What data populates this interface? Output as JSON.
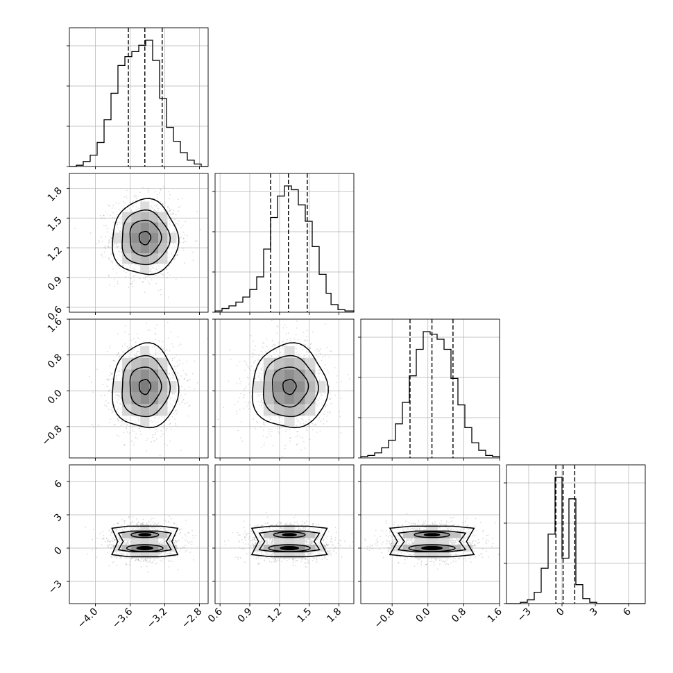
{
  "chart_data": {
    "type": "corner",
    "parameters": 4,
    "grid": true,
    "colors": {
      "line": "#000000",
      "grid": "#b0b0b0",
      "scatter": "#7f7f7f"
    },
    "axes": [
      {
        "lim": [
          -4.3,
          -2.7
        ],
        "ticks": [
          -4.0,
          -3.6,
          -3.2,
          -2.8
        ],
        "tick_labels": [
          "−4.0",
          "−3.6",
          "−3.2",
          "−2.8"
        ]
      },
      {
        "lim": [
          0.55,
          1.95
        ],
        "ticks": [
          0.6,
          0.9,
          1.2,
          1.5,
          1.8
        ],
        "tick_labels": [
          "0.6",
          "0.9",
          "1.2",
          "1.5",
          "1.8"
        ]
      },
      {
        "lim": [
          -1.5,
          1.6
        ],
        "ticks": [
          -0.8,
          0.0,
          0.8,
          1.6
        ],
        "tick_labels": [
          "−0.8",
          "0.0",
          "0.8",
          "1.6"
        ]
      },
      {
        "lim": [
          -5.0,
          7.5
        ],
        "ticks": [
          -3,
          0,
          3,
          6
        ],
        "tick_labels": [
          "−3",
          "0",
          "3",
          "6"
        ]
      }
    ],
    "marginals": [
      {
        "param": 0,
        "quantiles": [
          -3.62,
          -3.43,
          -3.23
        ],
        "bin_edges": [
          -4.3,
          -4.22,
          -4.14,
          -4.06,
          -3.98,
          -3.9,
          -3.82,
          -3.74,
          -3.66,
          -3.58,
          -3.5,
          -3.42,
          -3.34,
          -3.26,
          -3.18,
          -3.1,
          -3.02,
          -2.94,
          -2.86,
          -2.78,
          -2.7
        ],
        "counts": [
          0,
          1,
          4,
          9,
          19,
          37,
          58,
          80,
          87,
          91,
          96,
          100,
          84,
          54,
          31,
          20,
          11,
          5,
          2,
          0
        ]
      },
      {
        "param": 1,
        "quantiles": [
          1.11,
          1.29,
          1.48
        ],
        "bin_edges": [
          0.55,
          0.62,
          0.69,
          0.76,
          0.83,
          0.9,
          0.97,
          1.04,
          1.11,
          1.18,
          1.25,
          1.32,
          1.39,
          1.46,
          1.53,
          1.6,
          1.67,
          1.72,
          1.79,
          1.86,
          1.95
        ],
        "counts": [
          1,
          3,
          5,
          8,
          12,
          18,
          28,
          50,
          75,
          92,
          100,
          97,
          85,
          72,
          52,
          30,
          15,
          6,
          2,
          1
        ]
      },
      {
        "param": 2,
        "quantiles": [
          -0.4,
          0.09,
          0.56
        ],
        "bin_edges": [
          -1.5,
          -1.345,
          -1.19,
          -1.035,
          -0.88,
          -0.725,
          -0.57,
          -0.415,
          -0.26,
          -0.105,
          0.05,
          0.205,
          0.36,
          0.515,
          0.67,
          0.825,
          0.98,
          1.135,
          1.29,
          1.445,
          1.6
        ],
        "counts": [
          1,
          2,
          4,
          8,
          14,
          27,
          44,
          65,
          86,
          100,
          98,
          94,
          86,
          63,
          42,
          24,
          12,
          6,
          2,
          1
        ]
      },
      {
        "param": 3,
        "quantiles": [
          -0.55,
          0.1,
          1.15
        ],
        "bin_edges": [
          -5.0,
          -4.375,
          -3.75,
          -3.125,
          -2.5,
          -1.875,
          -1.25,
          -0.625,
          0.0,
          0.625,
          1.25,
          1.875,
          2.5,
          3.125,
          3.75,
          4.375,
          5.0,
          5.625,
          6.25,
          6.875,
          7.5
        ],
        "counts": [
          0,
          0,
          1,
          3,
          9,
          28,
          55,
          100,
          36,
          83,
          15,
          4,
          1,
          0,
          0,
          0,
          0,
          0,
          0,
          0
        ]
      }
    ],
    "pairs": [
      {
        "x_param": 0,
        "y_param": 1,
        "center": [
          -3.43,
          1.3
        ],
        "sigma": [
          0.19,
          0.19
        ],
        "bimodal_y": false
      },
      {
        "x_param": 0,
        "y_param": 2,
        "center": [
          -3.43,
          0.09
        ],
        "sigma": [
          0.19,
          0.47
        ],
        "bimodal_y": false
      },
      {
        "x_param": 1,
        "y_param": 2,
        "center": [
          1.3,
          0.09
        ],
        "sigma": [
          0.19,
          0.47
        ],
        "bimodal_y": false
      },
      {
        "x_param": 0,
        "y_param": 3,
        "center": [
          -3.43,
          0.3
        ],
        "sigma": [
          0.19,
          1.0
        ],
        "bimodal_y": true,
        "modes": [
          0.0,
          1.2
        ]
      },
      {
        "x_param": 1,
        "y_param": 3,
        "center": [
          1.3,
          0.3
        ],
        "sigma": [
          0.19,
          1.0
        ],
        "bimodal_y": true,
        "modes": [
          0.0,
          1.2
        ]
      },
      {
        "x_param": 2,
        "y_param": 3,
        "center": [
          0.09,
          0.3
        ],
        "sigma": [
          0.47,
          1.0
        ],
        "bimodal_y": true,
        "modes": [
          0.0,
          1.2
        ]
      }
    ]
  }
}
